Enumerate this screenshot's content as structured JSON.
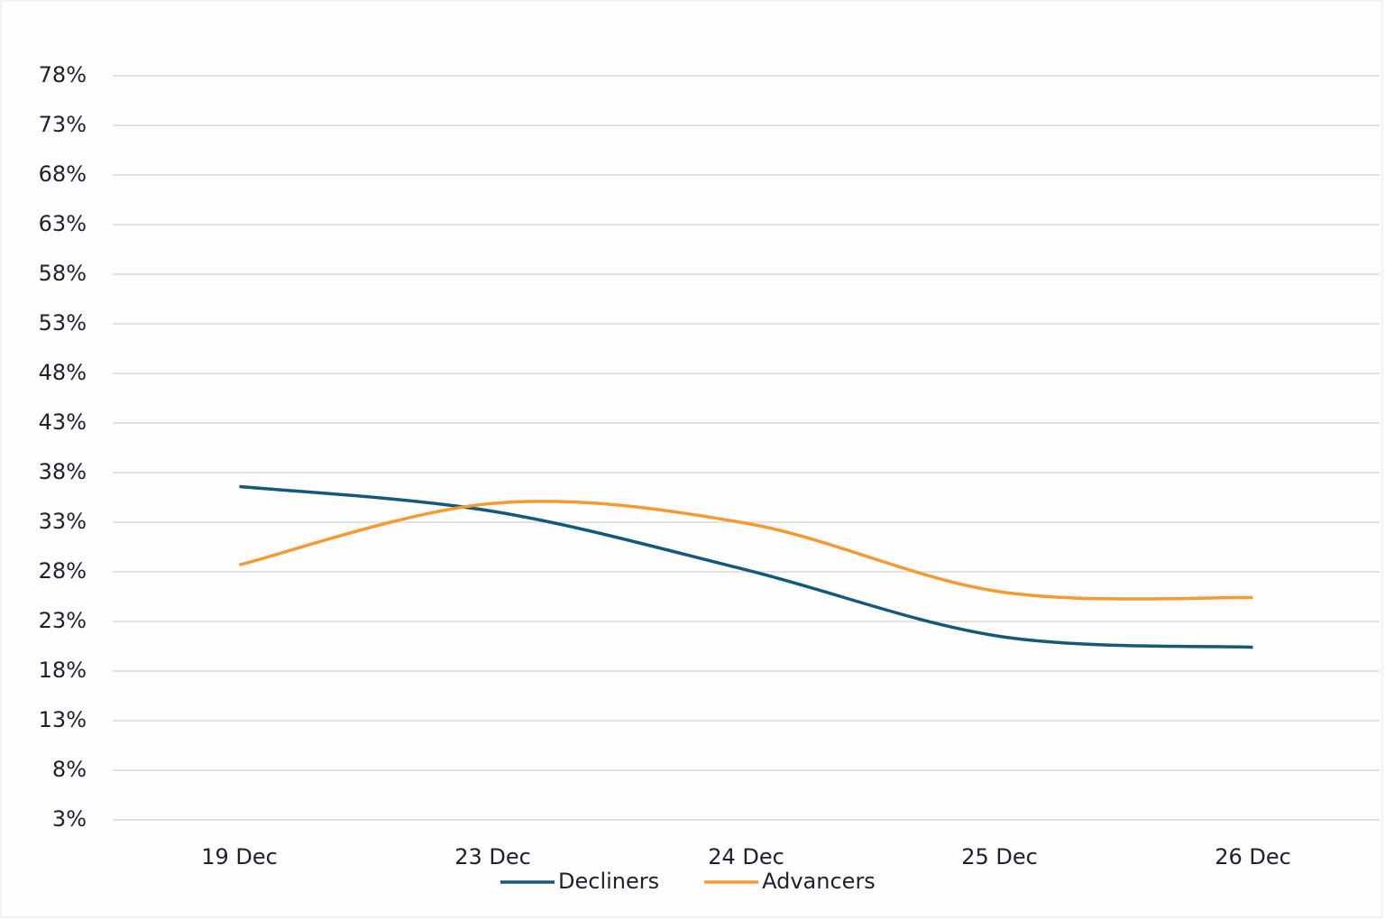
{
  "chart_data": {
    "type": "line",
    "categories": [
      "19 Dec",
      "23 Dec",
      "24 Dec",
      "25 Dec",
      "26 Dec"
    ],
    "series": [
      {
        "name": "Decliners",
        "color": "#135a7a",
        "values": [
          36.6,
          34.1,
          28.2,
          21.5,
          20.4
        ]
      },
      {
        "name": "Advancers",
        "color": "#f39a32",
        "values": [
          28.7,
          34.9,
          32.9,
          26.0,
          25.4
        ]
      }
    ],
    "ylim": [
      3,
      78
    ],
    "yticks": [
      {
        "value": 3,
        "label": "3%"
      },
      {
        "value": 8,
        "label": "8%"
      },
      {
        "value": 13,
        "label": "13%"
      },
      {
        "value": 18,
        "label": "18%"
      },
      {
        "value": 23,
        "label": "23%"
      },
      {
        "value": 28,
        "label": "28%"
      },
      {
        "value": 33,
        "label": "33%"
      },
      {
        "value": 38,
        "label": "38%"
      },
      {
        "value": 43,
        "label": "43%"
      },
      {
        "value": 48,
        "label": "48%"
      },
      {
        "value": 53,
        "label": "53%"
      },
      {
        "value": 58,
        "label": "58%"
      },
      {
        "value": 63,
        "label": "63%"
      },
      {
        "value": 68,
        "label": "68%"
      },
      {
        "value": 73,
        "label": "73%"
      },
      {
        "value": 78,
        "label": "78%"
      }
    ],
    "grid": true,
    "smooth": true,
    "legend": "bottom"
  }
}
